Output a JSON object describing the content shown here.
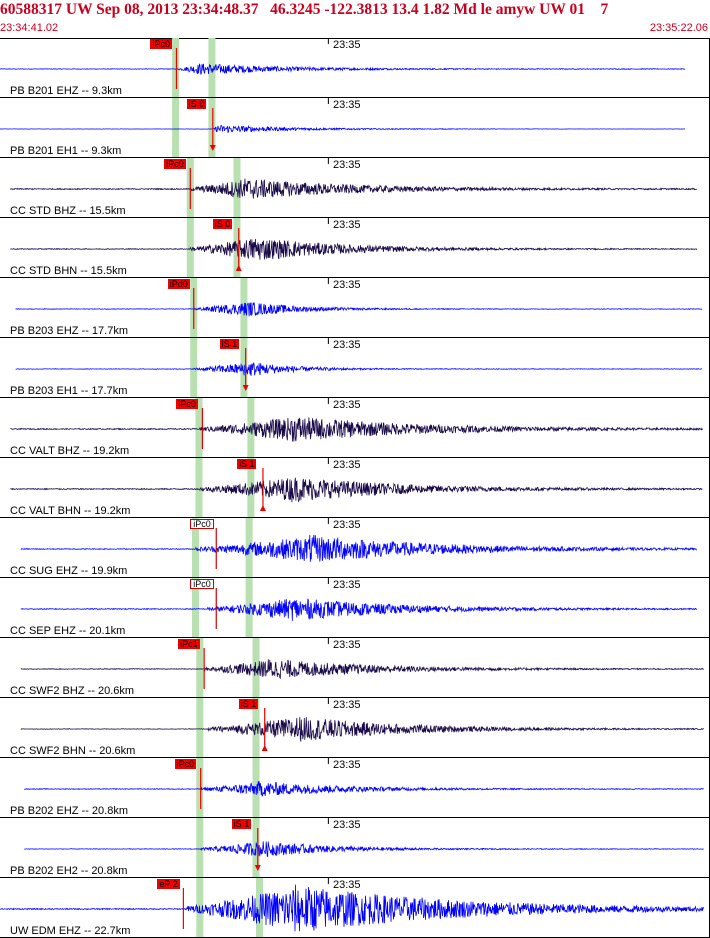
{
  "header": {
    "title": "60588317 UW Sep 08, 2013 23:34:48.37   46.3245 -122.3813 13.4 1.82 Md le amyw UW 01    7",
    "start_time": "23:34:41.02",
    "end_time": "23:35:22.06"
  },
  "colors": {
    "header_text": "#c8001e",
    "trace_blue": "#0000ff",
    "trace_navy": "#1a0a4a",
    "pick_red": "#ee0000",
    "theoretical_green": "#b8e0b0"
  },
  "chart_data": {
    "type": "line",
    "x_unit": "seconds after 23:34:41.02",
    "xlim": [
      0,
      41.04
    ],
    "minute_marker": {
      "label": "23:35",
      "x": 18.98
    },
    "series": [
      {
        "name": "PB B201 EHZ -- 9.3km",
        "color": "#0000ff",
        "pick": {
          "label": "iPc0",
          "x": 10.2,
          "filled": true,
          "arrow": "none"
        },
        "green": [
          10.15,
          12.25
        ],
        "onset": 10.3,
        "peak": 11.5,
        "decay": 5,
        "amp": 0.22,
        "end": 39.6,
        "noise": 0.01,
        "baseline_x": 0
      },
      {
        "name": "PB B201 EH1 -- 9.3km",
        "color": "#0000ff",
        "pick": {
          "label": "iS 0",
          "x": 12.3,
          "filled": true,
          "arrow": "down"
        },
        "green": [
          10.15,
          12.25
        ],
        "onset": 12.3,
        "peak": 12.6,
        "decay": 4,
        "amp": 0.16,
        "end": 39.6,
        "noise": 0.005,
        "baseline_x": 0
      },
      {
        "name": "CC STD BHZ -- 15.5km",
        "color": "#1a0a4a",
        "pick": {
          "label": "iPc0",
          "x": 11.0,
          "filled": true,
          "arrow": "none"
        },
        "green": [
          11.0,
          13.7
        ],
        "onset": 11.0,
        "peak": 14.0,
        "decay": 6,
        "amp": 0.42,
        "end": 40.3,
        "noise": 0.02,
        "baseline_x": 0.6
      },
      {
        "name": "CC STD BHN -- 15.5km",
        "color": "#1a0a4a",
        "pick": {
          "label": "iS 0",
          "x": 13.8,
          "filled": true,
          "arrow": "up"
        },
        "green": [
          11.0,
          13.7
        ],
        "onset": 11.0,
        "peak": 14.6,
        "decay": 5,
        "amp": 0.48,
        "end": 40.3,
        "noise": 0.015,
        "baseline_x": 0.6
      },
      {
        "name": "PB B203 EHZ -- 17.7km",
        "color": "#0000ff",
        "pick": {
          "label": "iPd0",
          "x": 11.2,
          "filled": true,
          "arrow": "none"
        },
        "green": [
          11.2,
          14.1
        ],
        "onset": 11.2,
        "peak": 14.2,
        "decay": 3,
        "amp": 0.3,
        "end": 40.6,
        "noise": 0.01,
        "baseline_x": 0.9
      },
      {
        "name": "PB B203 EH1 -- 17.7km",
        "color": "#0000ff",
        "pick": {
          "label": "iS 1",
          "x": 14.2,
          "filled": true,
          "arrow": "down"
        },
        "green": [
          11.2,
          14.1
        ],
        "onset": 11.2,
        "peak": 14.4,
        "decay": 2.5,
        "amp": 0.3,
        "end": 40.6,
        "noise": 0.01,
        "baseline_x": 0.9
      },
      {
        "name": "CC VALT BHZ -- 19.2km",
        "color": "#1a0a4a",
        "pick": {
          "label": "iPc0",
          "x": 11.7,
          "filled": true,
          "arrow": "none"
        },
        "green": [
          11.5,
          14.5
        ],
        "onset": 11.5,
        "peak": 16.8,
        "decay": 7,
        "amp": 0.5,
        "end": 40.6,
        "noise": 0.02,
        "baseline_x": 0.6
      },
      {
        "name": "CC VALT BHN -- 19.2km",
        "color": "#1a0a4a",
        "pick": {
          "label": "iS 1",
          "x": 15.2,
          "filled": true,
          "arrow": "up"
        },
        "green": [
          11.5,
          14.5
        ],
        "onset": 11.5,
        "peak": 16.8,
        "decay": 6,
        "amp": 0.5,
        "end": 40.6,
        "noise": 0.02,
        "baseline_x": 0.6
      },
      {
        "name": "CC SUG EHZ -- 19.9km",
        "color": "#0000ff",
        "pick": {
          "label": "iPc0",
          "x": 12.5,
          "filled": false,
          "arrow": "none"
        },
        "green": [
          11.3,
          14.4
        ],
        "onset": 11.3,
        "peak": 17.9,
        "decay": 7,
        "amp": 0.55,
        "end": 40.3,
        "noise": 0.015,
        "baseline_x": 1.2
      },
      {
        "name": "CC SEP EHZ -- 20.1km",
        "color": "#0000ff",
        "pick": {
          "label": "iPc0",
          "x": 12.5,
          "filled": false,
          "arrow": "none"
        },
        "green": [
          11.3,
          14.4
        ],
        "onset": 12.0,
        "peak": 16.8,
        "decay": 6,
        "amp": 0.45,
        "end": 40.3,
        "noise": 0.015,
        "baseline_x": 1.2
      },
      {
        "name": "CC SWF2 BHZ -- 20.6km",
        "color": "#1a0a4a",
        "pick": {
          "label": "iPc1",
          "x": 11.8,
          "filled": true,
          "arrow": "none"
        },
        "green": [
          11.55,
          14.8
        ],
        "onset": 11.8,
        "peak": 15.5,
        "decay": 6,
        "amp": 0.4,
        "end": 40.7,
        "noise": 0.012,
        "baseline_x": 1.2
      },
      {
        "name": "CC SWF2 BHN -- 20.6km",
        "color": "#1a0a4a",
        "pick": {
          "label": "iS 1",
          "x": 15.3,
          "filled": true,
          "arrow": "up"
        },
        "green": [
          11.55,
          14.8
        ],
        "onset": 12.0,
        "peak": 17.1,
        "decay": 6,
        "amp": 0.5,
        "end": 40.7,
        "noise": 0.01,
        "baseline_x": 1.2
      },
      {
        "name": "PB B202 EHZ -- 20.8km",
        "color": "#0000ff",
        "pick": {
          "label": "iPc0",
          "x": 11.6,
          "filled": true,
          "arrow": "none"
        },
        "green": [
          11.55,
          14.8
        ],
        "onset": 11.6,
        "peak": 14.9,
        "decay": 5,
        "amp": 0.3,
        "end": 40.7,
        "noise": 0.012,
        "baseline_x": 1.4
      },
      {
        "name": "PB B202 EH2 -- 20.8km",
        "color": "#0000ff",
        "pick": {
          "label": "iS 1",
          "x": 14.9,
          "filled": true,
          "arrow": "down"
        },
        "green": [
          11.55,
          14.8
        ],
        "onset": 11.6,
        "peak": 15.0,
        "decay": 4,
        "amp": 0.32,
        "end": 40.7,
        "noise": 0.01,
        "baseline_x": 1.4
      },
      {
        "name": "UW EDM EHZ -- 22.7km",
        "color": "#0000ff",
        "pick": {
          "label": "eP 2",
          "x": 10.6,
          "filled": true,
          "arrow": "none"
        },
        "green": [
          11.55,
          15.0
        ],
        "onset": 10.8,
        "peak": 17.0,
        "decay": 9,
        "amp": 0.95,
        "end": 40.7,
        "noise": 0.02,
        "baseline_x": 0
      }
    ]
  }
}
